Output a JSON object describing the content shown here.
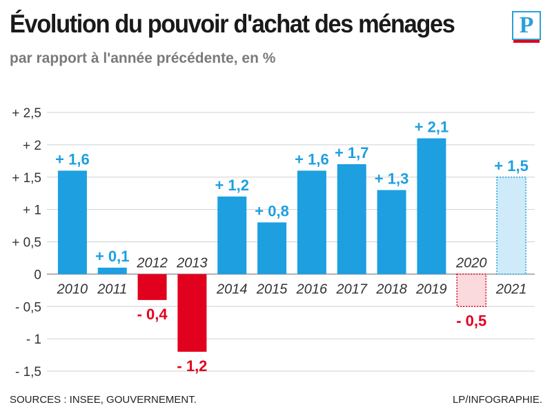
{
  "header": {
    "title": "Évolution du pouvoir d'achat des ménages",
    "subtitle": "par rapport à l'année précédente, en %",
    "logo_letter": "P"
  },
  "footer": {
    "sources": "SOURCES : INSEE, GOUVERNEMENT.",
    "credit": "LP/INFOGRAPHIE."
  },
  "colors": {
    "positive": "#1d9fe0",
    "negative": "#e1001e",
    "forecast_positive_fill": "#cfeaf8",
    "forecast_negative_fill": "#fadadd",
    "grid": "#d0d0d0"
  },
  "chart_data": {
    "type": "bar",
    "categories": [
      "2010",
      "2011",
      "2012",
      "2013",
      "2014",
      "2015",
      "2016",
      "2017",
      "2018",
      "2019",
      "2020",
      "2021"
    ],
    "values": [
      1.6,
      0.1,
      -0.4,
      -1.2,
      1.2,
      0.8,
      1.6,
      1.7,
      1.3,
      2.1,
      -0.5,
      1.5
    ],
    "value_labels": [
      "+ 1,6",
      "+ 0,1",
      "- 0,4",
      "- 1,2",
      "+ 1,2",
      "+ 0,8",
      "+ 1,6",
      "+ 1,7",
      "+ 1,3",
      "+ 2,1",
      "- 0,5",
      "+ 1,5"
    ],
    "forecast": [
      false,
      false,
      false,
      false,
      false,
      false,
      false,
      false,
      false,
      false,
      true,
      true
    ],
    "yticks": [
      2.5,
      2,
      1.5,
      1,
      0.5,
      0,
      -0.5,
      -1,
      -1.5
    ],
    "ytick_labels": [
      "+ 2,5",
      "+ 2",
      "+ 1,5",
      "+ 1",
      "+ 0,5",
      "0",
      "- 0,5",
      "- 1",
      "- 1,5"
    ],
    "ylim": [
      -1.5,
      2.5
    ],
    "grid": true,
    "title": "Évolution du pouvoir d'achat des ménages",
    "xlabel": "",
    "ylabel": ""
  }
}
